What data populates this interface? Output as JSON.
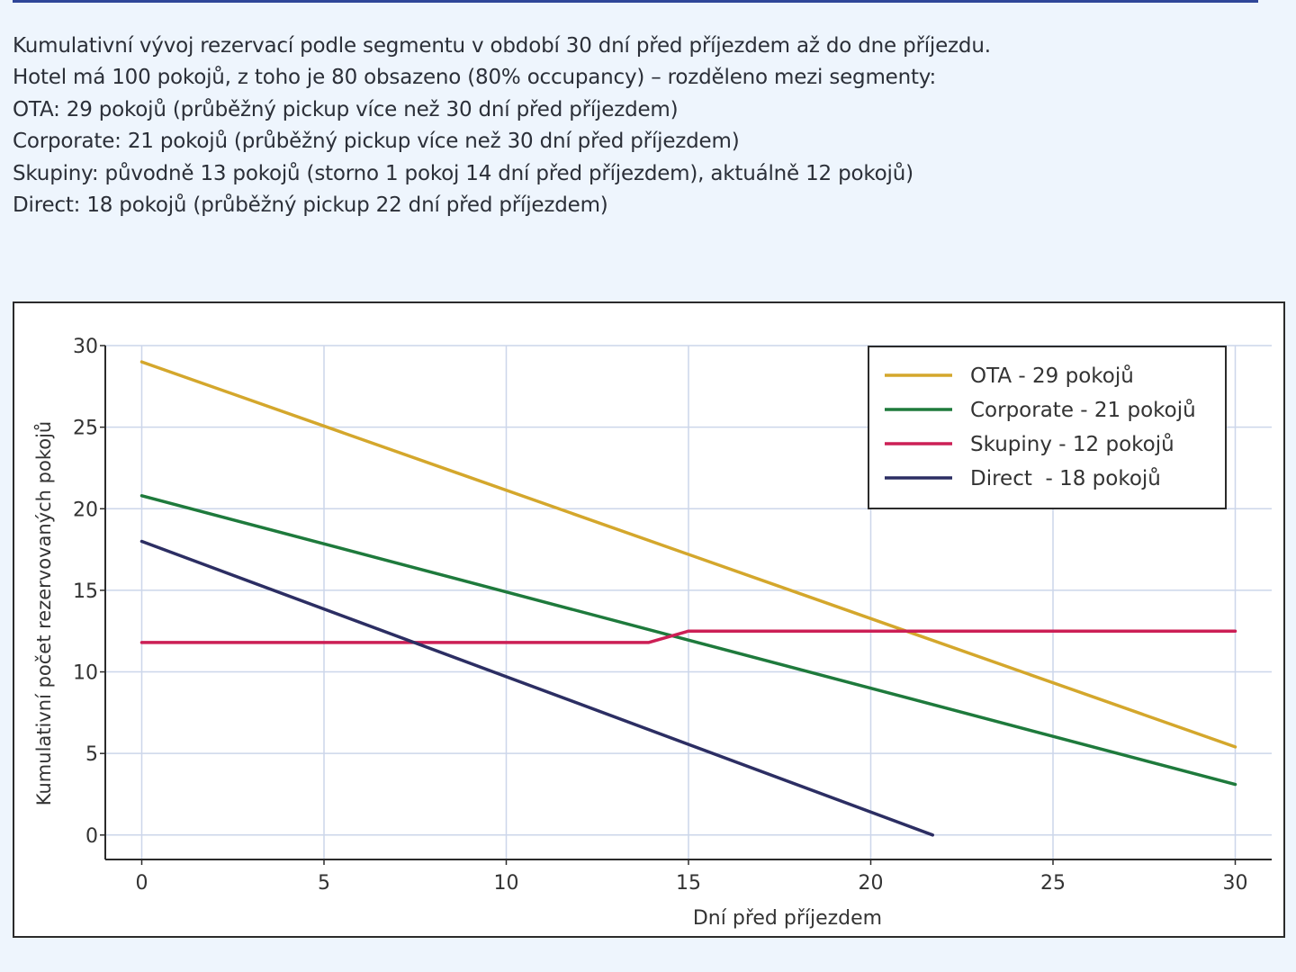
{
  "description": {
    "lines": [
      "Kumulativní vývoj rezervací podle segmentu v období 30 dní před příjezdem až do dne příjezdu.",
      "Hotel má 100 pokojů, z toho je 80 obsazeno (80% occupancy) – rozděleno mezi segmenty:",
      "OTA: 29 pokojů (průběžný pickup více než 30 dní před příjezdem)",
      "Corporate: 21 pokojů (průběžný pickup více než 30 dní před příjezdem)",
      "Skupiny: původně 13 pokojů (storno 1 pokoj 14 dní před příjezdem), aktuálně 12 pokojů)",
      "Direct: 18 pokojů (průběžný pickup 22 dní před příjezdem)"
    ]
  },
  "colors": {
    "accent_rule": "#2f4699",
    "page_background": "#eef5fd",
    "grid": "#ccd6ea"
  },
  "chart_data": {
    "type": "line",
    "title": "",
    "xlabel": "Dní před příjezdem",
    "ylabel": "Kumulativní počet rezervovaných pokojů",
    "xlim": [
      -1,
      31
    ],
    "ylim": [
      -1.5,
      30
    ],
    "xticks": [
      0,
      5,
      10,
      15,
      20,
      25,
      30
    ],
    "yticks": [
      0,
      5,
      10,
      15,
      20,
      25,
      30
    ],
    "grid": true,
    "legend_position": "top-right",
    "series": [
      {
        "name": "OTA - 29 pokojů",
        "color": "#d4a72c",
        "x": [
          0,
          30
        ],
        "y": [
          29,
          5.4
        ]
      },
      {
        "name": "Corporate - 21 pokojů",
        "color": "#1e7a3c",
        "x": [
          0,
          30
        ],
        "y": [
          20.8,
          3.1
        ]
      },
      {
        "name": "Skupiny - 12 pokojů",
        "color": "#cc1f55",
        "x": [
          0,
          13.9,
          15,
          30
        ],
        "y": [
          11.8,
          11.8,
          12.5,
          12.5
        ]
      },
      {
        "name": "Direct  - 18 pokojů",
        "color": "#2c2e63",
        "x": [
          0,
          21.7
        ],
        "y": [
          18,
          0
        ]
      }
    ]
  }
}
